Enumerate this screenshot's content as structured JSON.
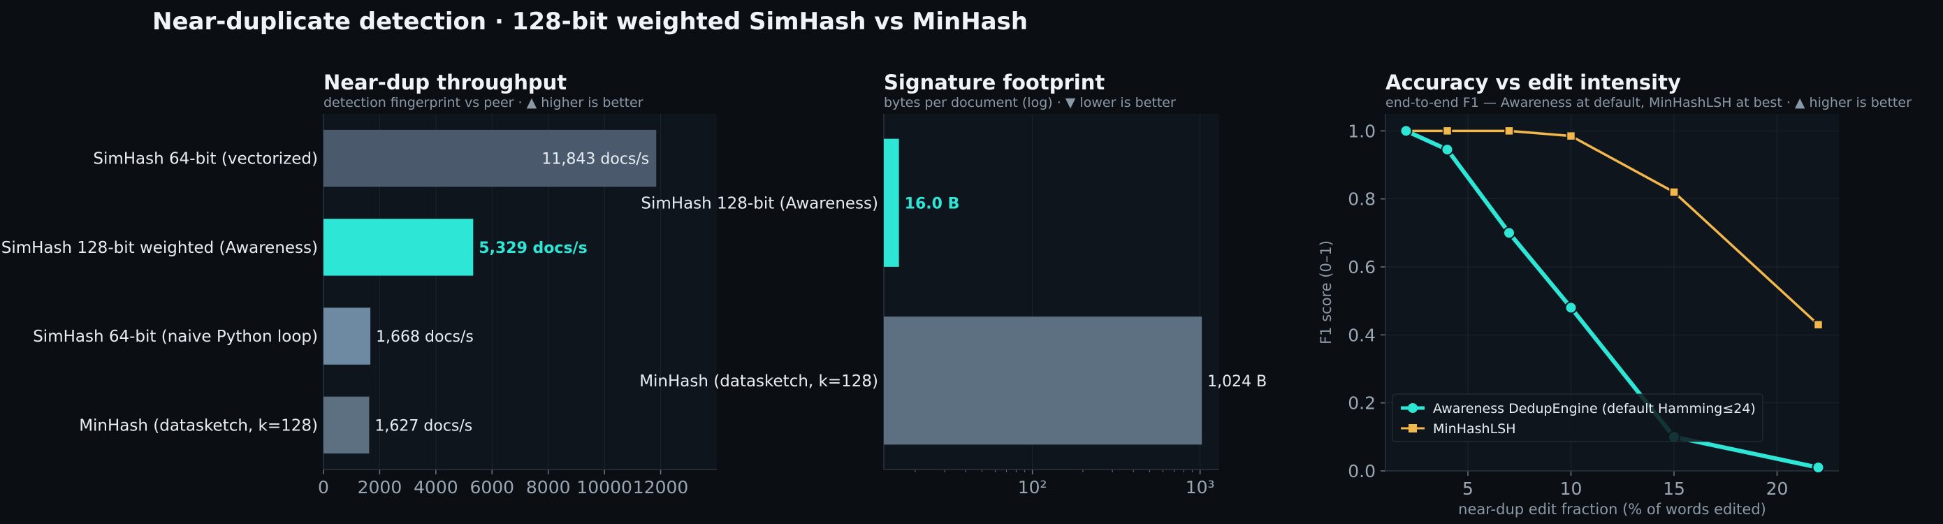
{
  "figure": {
    "title": "Near-duplicate detection  ·  128-bit weighted SimHash vs MinHash"
  },
  "colors": {
    "background": "#0b0f14",
    "panel": "#0f151c",
    "accent": "#2ee6d6",
    "minhash_line": "#f2b84b",
    "bar_gray_1": "#4a5a6c",
    "bar_gray_2": "#6e8aa2",
    "bar_gray_3": "#5c7082"
  },
  "chart_data": [
    {
      "type": "bar",
      "orientation": "horizontal",
      "title": "Near-dup throughput",
      "subtitle": "detection fingerprint vs peer   ·   ▲ higher is better",
      "categories": [
        "SimHash 64-bit (vectorized)",
        "SimHash 128-bit weighted (Awareness)",
        "SimHash 64-bit (naive Python loop)",
        "MinHash (datasketch, k=128)"
      ],
      "values": [
        11843,
        5329,
        1668,
        1627
      ],
      "value_labels": [
        "11,843 docs/s",
        "5,329 docs/s",
        "1,668 docs/s",
        "1,627 docs/s"
      ],
      "highlight_index": 1,
      "bar_colors": [
        "#4a5a6c",
        "#2ee6d6",
        "#6e8aa2",
        "#5c7082"
      ],
      "xlim": [
        0,
        14000
      ],
      "xticks": [
        0,
        2000,
        4000,
        6000,
        8000,
        10000,
        12000
      ],
      "xtick_labels": [
        "0",
        "2000",
        "4000",
        "6000",
        "8000",
        "10000",
        "12000"
      ],
      "grid": true
    },
    {
      "type": "bar",
      "orientation": "horizontal",
      "title": "Signature footprint",
      "subtitle": "bytes per document (log)   ·   ▼ lower is better",
      "categories": [
        "SimHash 128-bit (Awareness)",
        "MinHash (datasketch, k=128)"
      ],
      "values": [
        16,
        1024
      ],
      "value_labels": [
        "16.0 B",
        "1,024 B"
      ],
      "highlight_index": 0,
      "bar_colors": [
        "#2ee6d6",
        "#5c7082"
      ],
      "xscale": "log",
      "xlim": [
        13,
        1300
      ],
      "xticks": [
        100,
        1000
      ],
      "xtick_labels": [
        "10²",
        "10³"
      ],
      "grid": true
    },
    {
      "type": "line",
      "title": "Accuracy vs edit intensity",
      "subtitle": "end-to-end F1 — Awareness at default, MinHashLSH at best   ·   ▲ higher is better",
      "xlabel": "near-dup edit fraction (% of words edited)",
      "ylabel": "F1 score (0–1)",
      "xlim": [
        1,
        23
      ],
      "ylim": [
        0,
        1.05
      ],
      "xticks": [
        5,
        10,
        15,
        20
      ],
      "yticks": [
        0.0,
        0.2,
        0.4,
        0.6,
        0.8,
        1.0
      ],
      "ytick_labels": [
        "0.0",
        "0.2",
        "0.4",
        "0.6",
        "0.8",
        "1.0"
      ],
      "series": [
        {
          "name": "Awareness DedupEngine (default Hamming≤24)",
          "color": "#2ee6d6",
          "marker": "circle",
          "x": [
            2,
            4,
            7,
            10,
            15,
            22
          ],
          "y": [
            1.0,
            0.945,
            0.7,
            0.48,
            0.1,
            0.01
          ]
        },
        {
          "name": "MinHashLSH",
          "color": "#f2b84b",
          "marker": "square",
          "x": [
            2,
            4,
            7,
            10,
            15,
            22
          ],
          "y": [
            1.0,
            1.0,
            1.0,
            0.985,
            0.82,
            0.43
          ]
        }
      ],
      "legend": "lower-left",
      "grid": true
    }
  ]
}
